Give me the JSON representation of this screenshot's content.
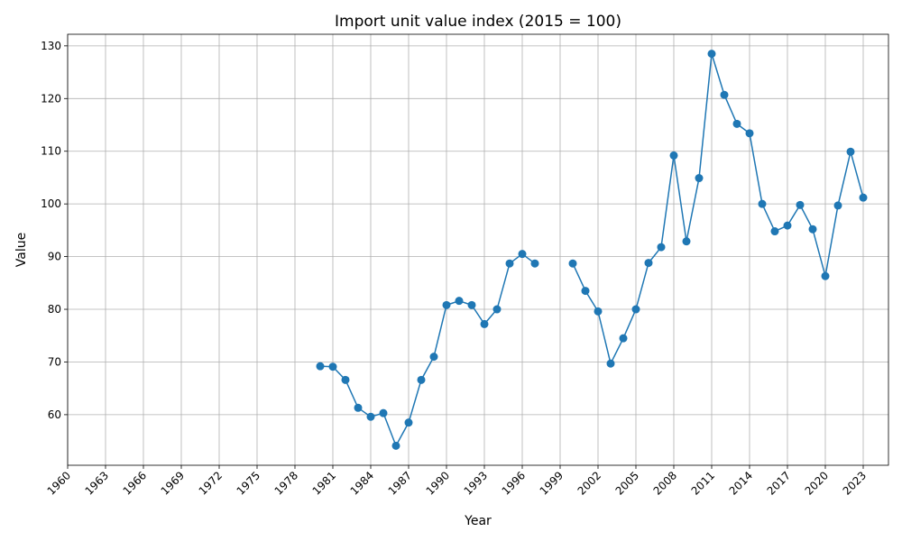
{
  "chart_data": {
    "type": "line",
    "title": "Import unit value index (2015 = 100)",
    "x_label": "Year",
    "y_label": "Value",
    "x": [
      1980,
      1981,
      1982,
      1983,
      1984,
      1985,
      1986,
      1987,
      1988,
      1989,
      1990,
      1991,
      1992,
      1993,
      1994,
      1995,
      1996,
      1997,
      1998,
      1999,
      2000,
      2001,
      2002,
      2003,
      2004,
      2005,
      2006,
      2007,
      2008,
      2009,
      2010,
      2011,
      2012,
      2013,
      2014,
      2015,
      2016,
      2017,
      2018,
      2019,
      2020,
      2021,
      2022,
      2023
    ],
    "values": [
      69.2,
      69.1,
      66.6,
      61.3,
      59.6,
      60.3,
      54.1,
      58.5,
      66.6,
      71.0,
      80.8,
      81.6,
      80.8,
      77.2,
      80.0,
      88.7,
      90.5,
      88.7,
      null,
      null,
      88.7,
      83.5,
      79.6,
      69.7,
      74.5,
      80.0,
      88.8,
      91.8,
      109.2,
      92.9,
      104.9,
      128.5,
      120.7,
      115.2,
      113.4,
      100.0,
      94.8,
      95.9,
      99.8,
      95.2,
      86.3,
      99.7,
      109.9,
      101.2
    ],
    "color": "#1f77b4",
    "xlim": [
      1960,
      2025
    ],
    "xticks": [
      1960,
      1963,
      1966,
      1969,
      1972,
      1975,
      1978,
      1981,
      1984,
      1987,
      1990,
      1993,
      1996,
      1999,
      2002,
      2005,
      2008,
      2011,
      2014,
      2017,
      2020,
      2023
    ],
    "ylim": [
      50.4,
      132.2
    ],
    "yticks": [
      60,
      70,
      80,
      90,
      100,
      110,
      120,
      130
    ],
    "grid": true
  }
}
